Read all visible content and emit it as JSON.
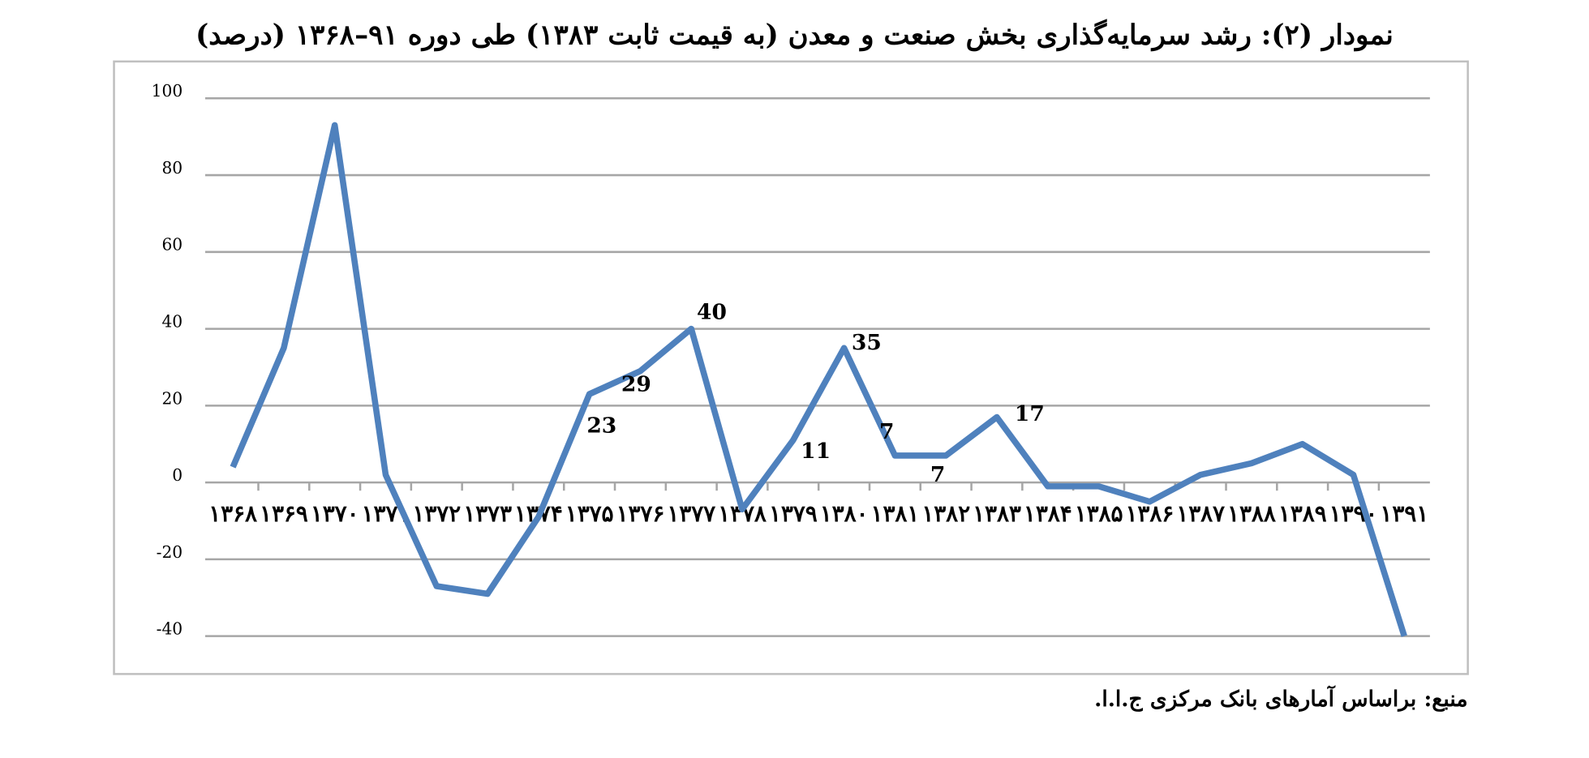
{
  "chart_data": {
    "type": "line",
    "title": "نمودار (۲): رشد سرمایه‌گذاری بخش صنعت و معدن (به قیمت ثابت ۱۳۸۳) طی دوره ۹۱–۱۳۶۸  (درصد)",
    "source": "منبع: براساس آمارهای بانک مرکزی ج.ا.ا.",
    "categories": [
      "۱۳۶۸",
      "۱۳۶۹",
      "۱۳۷۰",
      "۱۳۷۱",
      "۱۳۷۲",
      "۱۳۷۳",
      "۱۳۷۴",
      "۱۳۷۵",
      "۱۳۷۶",
      "۱۳۷۷",
      "۱۳۷۸",
      "۱۳۷۹",
      "۱۳۸۰",
      "۱۳۸۱",
      "۱۳۸۲",
      "۱۳۸۳",
      "۱۳۸۴",
      "۱۳۸۵",
      "۱۳۸۶",
      "۱۳۸۷",
      "۱۳۸۸",
      "۱۳۸۹",
      "۱۳۹۰",
      "۱۳۹۱"
    ],
    "values": [
      4,
      35,
      93,
      2,
      -27,
      -29,
      -9,
      23,
      29,
      40,
      -7,
      11,
      35,
      7,
      7,
      17,
      -1,
      -1,
      -5,
      2,
      5,
      10,
      2,
      -40
    ],
    "value_labels": [
      null,
      null,
      null,
      null,
      null,
      null,
      null,
      "23",
      "29",
      "40",
      null,
      "11",
      "35",
      "7",
      "7",
      "17",
      null,
      null,
      null,
      null,
      null,
      null,
      null,
      null
    ],
    "color": "#4f81bd",
    "ylim": [
      -40,
      100
    ],
    "yticks": [
      -40,
      -20,
      0,
      20,
      40,
      60,
      80,
      100
    ],
    "grid": true
  }
}
